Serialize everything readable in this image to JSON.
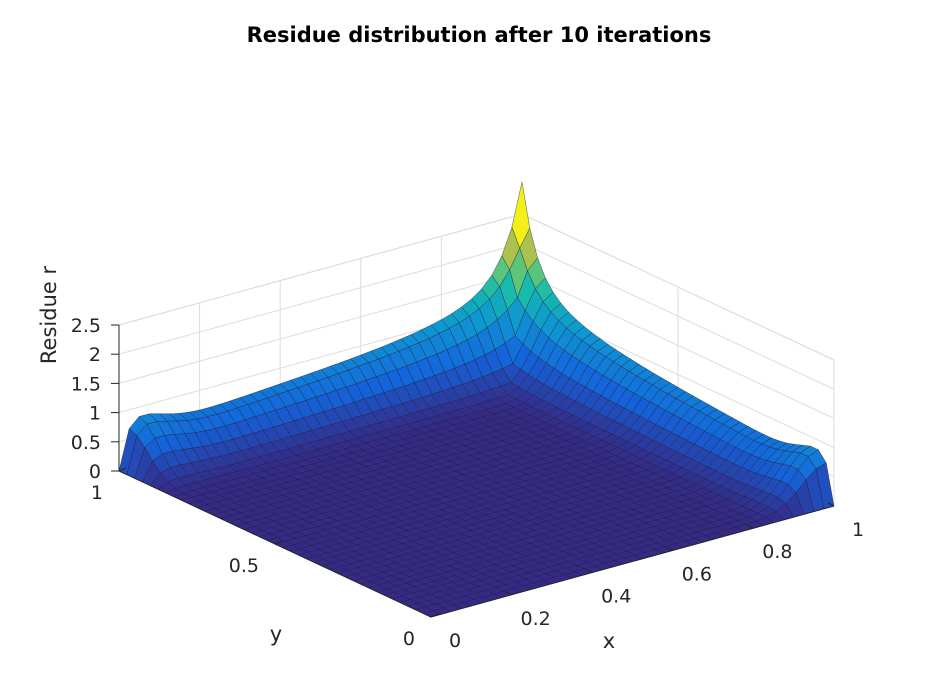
{
  "chart_data": {
    "type": "surface",
    "title": "Residue distribution after 10 iterations",
    "xlabel": "x",
    "ylabel": "y",
    "zlabel": "Residue r",
    "xlim": [
      0,
      1
    ],
    "ylim": [
      0,
      1
    ],
    "zlim": [
      0,
      2.5
    ],
    "x_ticks": [
      "0",
      "0.2",
      "0.4",
      "0.6",
      "0.8",
      "1"
    ],
    "y_ticks": [
      "0",
      "0.5",
      "1"
    ],
    "z_ticks": [
      "0",
      "0.5",
      "1",
      "1.5",
      "2",
      "2.5"
    ],
    "grid": true,
    "colormap": "parula",
    "features": {
      "peak_corner": {
        "x": 1,
        "y": 1,
        "r": 2.5
      },
      "corner_bump_x0_y1": {
        "r": 1.0
      },
      "corner_bump_x1_y0": {
        "r": 1.0
      },
      "interior_minimum": {
        "r": 0
      }
    },
    "edge_profiles": {
      "x": [
        0,
        0.1,
        0.2,
        0.3,
        0.4,
        0.5,
        0.6,
        0.7,
        0.8,
        0.9,
        1
      ],
      "r_along_x_at_y1": [
        1.0,
        0.85,
        0.7,
        0.75,
        0.85,
        0.95,
        1.05,
        1.2,
        1.45,
        1.85,
        2.5
      ],
      "r_along_y_at_x1": [
        1.0,
        0.85,
        0.7,
        0.75,
        0.85,
        0.95,
        1.05,
        1.2,
        1.45,
        1.85,
        2.5
      ]
    }
  }
}
